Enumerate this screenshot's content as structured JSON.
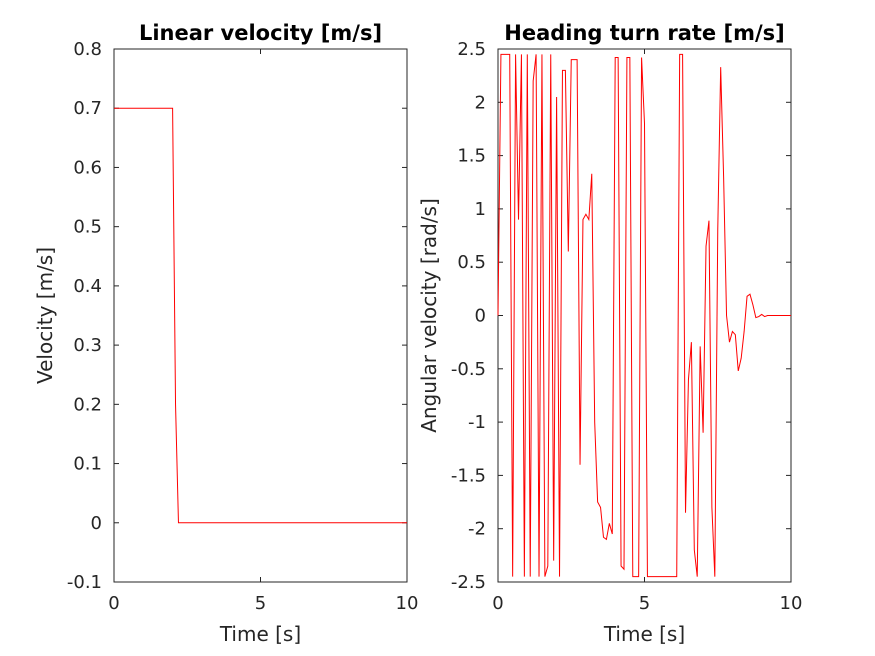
{
  "chart_data": [
    {
      "type": "line",
      "title": "Linear velocity [m/s]",
      "xlabel": "Time [s]",
      "ylabel": "Velocity [m/s]",
      "xlim": [
        0,
        10
      ],
      "ylim": [
        -0.1,
        0.8
      ],
      "xticks": [
        0,
        5,
        10
      ],
      "xtick_labels": [
        "0",
        "5",
        "10"
      ],
      "yticks": [
        -0.1,
        0,
        0.1,
        0.2,
        0.3,
        0.4,
        0.5,
        0.6,
        0.7,
        0.8
      ],
      "ytick_labels": [
        "-0.1",
        "0",
        "0.1",
        "0.2",
        "0.3",
        "0.4",
        "0.5",
        "0.6",
        "0.7",
        "0.8"
      ],
      "grid": false,
      "series": [
        {
          "color": "#ff0000",
          "x": [
            0,
            2.0,
            2.1,
            2.2,
            10
          ],
          "y": [
            0.7,
            0.7,
            0.2,
            0.0,
            0.0
          ]
        }
      ]
    },
    {
      "type": "line",
      "title": "Heading turn rate [m/s]",
      "xlabel": "Time [s]",
      "ylabel": "Angular velocity [rad/s]",
      "xlim": [
        0,
        10
      ],
      "ylim": [
        -2.5,
        2.5
      ],
      "xticks": [
        0,
        5,
        10
      ],
      "xtick_labels": [
        "0",
        "5",
        "10"
      ],
      "yticks": [
        -2.5,
        -2,
        -1.5,
        -1,
        -0.5,
        0,
        0.5,
        1,
        1.5,
        2,
        2.5
      ],
      "ytick_labels": [
        "-2.5",
        "-2",
        "-1.5",
        "-1",
        "-0.5",
        "0",
        "0.5",
        "1",
        "1.5",
        "2",
        "2.5"
      ],
      "grid": false,
      "series": [
        {
          "color": "#ff0000",
          "x": [
            0,
            0.1,
            0.2,
            0.4,
            0.5,
            0.6,
            0.7,
            0.8,
            0.9,
            1.0,
            1.1,
            1.2,
            1.3,
            1.4,
            1.5,
            1.6,
            1.7,
            1.8,
            1.9,
            2.0,
            2.1,
            2.2,
            2.3,
            2.4,
            2.5,
            2.6,
            2.7,
            2.8,
            2.9,
            3.0,
            3.1,
            3.2,
            3.3,
            3.4,
            3.5,
            3.6,
            3.7,
            3.8,
            3.9,
            4.0,
            4.1,
            4.2,
            4.3,
            4.4,
            4.5,
            4.6,
            4.7,
            4.8,
            4.9,
            5.0,
            5.1,
            5.2,
            5.3,
            5.5,
            6.1,
            6.2,
            6.3,
            6.4,
            6.5,
            6.6,
            6.7,
            6.8,
            6.9,
            7.0,
            7.1,
            7.2,
            7.3,
            7.4,
            7.5,
            7.6,
            7.7,
            7.8,
            7.9,
            8.0,
            8.1,
            8.2,
            8.3,
            8.4,
            8.5,
            8.6,
            8.7,
            8.8,
            8.9,
            9.0,
            9.1,
            9.2,
            9.3,
            9.5,
            10.0
          ],
          "y": [
            0.0,
            2.45,
            2.45,
            2.45,
            -2.45,
            2.45,
            0.9,
            2.45,
            -2.45,
            2.45,
            -2.45,
            2.2,
            2.45,
            -2.45,
            2.45,
            -2.45,
            -2.35,
            2.45,
            -2.3,
            2.05,
            -2.45,
            2.3,
            2.3,
            0.6,
            2.4,
            2.4,
            2.4,
            -1.4,
            0.9,
            0.95,
            0.9,
            1.33,
            -1.0,
            -1.75,
            -1.8,
            -2.08,
            -2.1,
            -1.95,
            -2.05,
            2.42,
            2.42,
            -2.35,
            -2.38,
            2.42,
            2.42,
            -2.45,
            -2.45,
            -2.45,
            2.42,
            1.8,
            -2.45,
            -2.45,
            -2.45,
            -2.45,
            -2.45,
            2.45,
            2.45,
            -1.85,
            -0.6,
            -0.25,
            -2.2,
            -2.45,
            -0.29,
            -1.1,
            0.65,
            0.89,
            -1.8,
            -2.45,
            0.8,
            2.33,
            1.3,
            0.0,
            -0.25,
            -0.15,
            -0.18,
            -0.52,
            -0.4,
            -0.15,
            0.18,
            0.2,
            0.1,
            -0.02,
            -0.01,
            0.01,
            -0.01,
            0.0,
            0.0,
            0.0,
            0.0
          ]
        }
      ]
    }
  ]
}
